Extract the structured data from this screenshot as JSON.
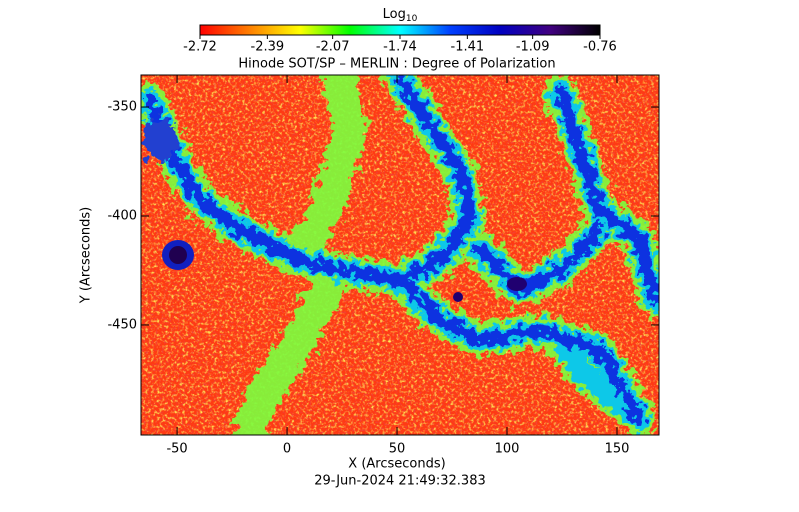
{
  "chart_data": {
    "type": "image",
    "title": "Hinode SOT/SP – MERLIN : Degree of Polarization",
    "x_label": "X (Arcseconds)",
    "y_label": "Y (Arcseconds)",
    "footer": "29-Jun-2024 21:49:32.383",
    "xlim": [
      -66.4,
      169.1
    ],
    "xticks": [
      -50,
      0,
      50,
      100,
      150
    ],
    "ylim": [
      -500.5,
      -335.3
    ],
    "yticks": [
      -350,
      -400,
      -450
    ],
    "colorbar": {
      "label": "Log",
      "label_subscript": "10",
      "lim": [
        -2.72,
        -0.76
      ],
      "ticks": [
        -2.72,
        -2.39,
        -2.07,
        -1.74,
        -1.41,
        -1.09,
        -0.76
      ],
      "colors": [
        "#ff0000",
        "#ff8000",
        "#ffff00",
        "#00ff00",
        "#00ffff",
        "#0040ff",
        "#0000c0",
        "#400080",
        "#000000"
      ]
    }
  }
}
